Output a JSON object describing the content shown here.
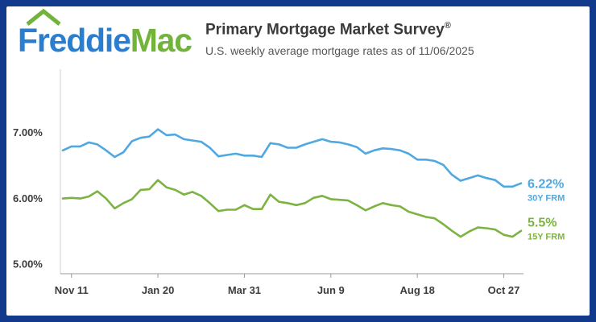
{
  "brand": {
    "name_part1": "Freddie",
    "name_part2": "Mac",
    "color_blue": "#2a7ed0",
    "color_green": "#72b33b",
    "icon": "house-roof-icon"
  },
  "frame_color": "#123a8c",
  "chart_data": {
    "type": "line",
    "title": "Primary Mortgage Market Survey",
    "title_mark": "®",
    "subtitle": "U.S. weekly average mortgage rates as of 11/06/2025",
    "y_ticks": [
      "7.00%",
      "6.00%",
      "5.00%"
    ],
    "y_tick_values": [
      7.0,
      6.0,
      5.0
    ],
    "ylim": [
      4.85,
      7.95
    ],
    "x_ticks": [
      "Nov 11",
      "Jan 20",
      "Mar 31",
      "Jun 9",
      "Aug 18",
      "Oct 27"
    ],
    "x_tick_indices": [
      1,
      11,
      21,
      31,
      41,
      51
    ],
    "n_weeks": 53,
    "series": [
      {
        "name": "30Y FRM",
        "label": "30Y FRM",
        "last_value_label": "6.22%",
        "color": "#4fa8e0",
        "values": [
          6.72,
          6.78,
          6.78,
          6.84,
          6.81,
          6.72,
          6.62,
          6.69,
          6.86,
          6.91,
          6.93,
          7.04,
          6.95,
          6.96,
          6.89,
          6.87,
          6.85,
          6.76,
          6.63,
          6.65,
          6.67,
          6.64,
          6.64,
          6.62,
          6.83,
          6.81,
          6.76,
          6.76,
          6.81,
          6.85,
          6.89,
          6.85,
          6.84,
          6.81,
          6.77,
          6.67,
          6.72,
          6.75,
          6.74,
          6.72,
          6.67,
          6.58,
          6.58,
          6.56,
          6.5,
          6.35,
          6.26,
          6.3,
          6.34,
          6.3,
          6.27,
          6.17,
          6.17,
          6.22
        ]
      },
      {
        "name": "15Y FRM",
        "label": "15Y FRM",
        "last_value_label": "5.5%",
        "color": "#7cb342",
        "values": [
          5.99,
          6.0,
          5.99,
          6.02,
          6.1,
          5.99,
          5.84,
          5.92,
          5.98,
          6.12,
          6.13,
          6.27,
          6.16,
          6.12,
          6.05,
          6.09,
          6.03,
          5.92,
          5.8,
          5.82,
          5.82,
          5.89,
          5.83,
          5.83,
          6.05,
          5.94,
          5.92,
          5.89,
          5.92,
          6.0,
          6.03,
          5.98,
          5.97,
          5.96,
          5.89,
          5.81,
          5.87,
          5.92,
          5.89,
          5.87,
          5.79,
          5.75,
          5.71,
          5.69,
          5.6,
          5.5,
          5.41,
          5.49,
          5.55,
          5.54,
          5.52,
          5.44,
          5.41,
          5.5
        ]
      }
    ]
  }
}
